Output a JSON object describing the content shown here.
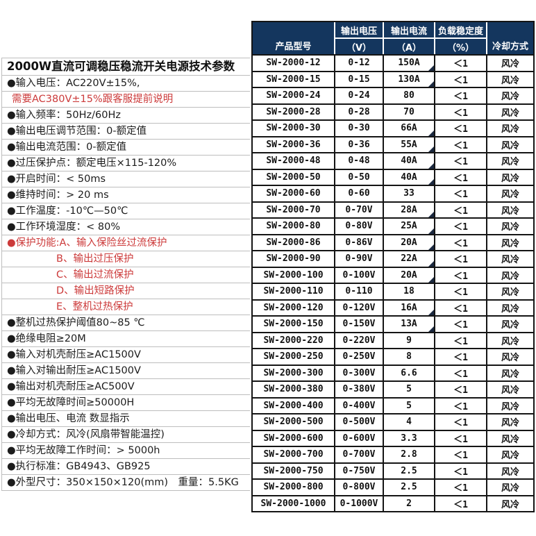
{
  "colors": {
    "header_bg": "#14365E",
    "red_text": "#CC3A3A",
    "grid_gray": "#bdbdbd",
    "table_line": "#141414"
  },
  "specs_panel": {
    "rows": [
      {
        "text": "2000W直流可调稳压稳流开关电源技术参数",
        "variant": "title"
      },
      {
        "text": "●输入电压：AC220V±15%,",
        "variant": "item"
      },
      {
        "text": "需要AC380V±15%跟客服提前说明",
        "variant": "red-indent"
      },
      {
        "text": "●输入频率：50Hz/60Hz",
        "variant": "item"
      },
      {
        "text": "●输出电压调节范围：0-额定值",
        "variant": "item"
      },
      {
        "text": "●输出电流范围：0-额定值",
        "variant": "item"
      },
      {
        "text": "●过压保护点：额定电压×115-120%",
        "variant": "item"
      },
      {
        "text": "●开启时间：< 50ms",
        "variant": "item"
      },
      {
        "text": "●维持时间：> 20 ms",
        "variant": "item"
      },
      {
        "text": "●工作温度：-10℃—50℃",
        "variant": "item"
      },
      {
        "text": "●工作环境湿度：< 80%",
        "variant": "item"
      },
      {
        "text": "●保护功能:A、输入保险丝过流保护",
        "variant": "red"
      },
      {
        "text": "B、输出过压保护",
        "variant": "red-deep"
      },
      {
        "text": "C、输出过流保护",
        "variant": "red-deep"
      },
      {
        "text": "D、输出短路保护",
        "variant": "red-deep"
      },
      {
        "text": "E、整机过热保护",
        "variant": "red-deep"
      },
      {
        "text": "●整机过热保护阈值80~85 ℃",
        "variant": "item"
      },
      {
        "text": "●绝缘电阻≥20M",
        "variant": "item"
      },
      {
        "text": "●输入对机壳耐压≥AC1500V",
        "variant": "item"
      },
      {
        "text": "●输入对输出耐压≥AC1500V",
        "variant": "item"
      },
      {
        "text": "●输出对机壳耐压≥AC500V",
        "variant": "item"
      },
      {
        "text": "●平均无故障时间≥50000H",
        "variant": "item"
      },
      {
        "text": "●输出电压、电流 数显指示",
        "variant": "item"
      },
      {
        "text": "●冷却方式：风冷(风扇带智能温控)",
        "variant": "item"
      },
      {
        "text": "●平均无故障工作时间：> 5000h",
        "variant": "item"
      },
      {
        "text": "●执行标准：GB4943、GB925",
        "variant": "item"
      },
      {
        "text": "●外型尺寸：350×150×120(mm)　重量：5.5KG",
        "variant": "item"
      }
    ]
  },
  "table": {
    "header": {
      "col_model": "产品型号",
      "col_voltage": "输出电压",
      "col_voltage_unit": "（V）",
      "col_current": "输出电流",
      "col_current_unit": "（A）",
      "col_stability": "负载稳定度",
      "col_stability_unit": "（%）",
      "col_cooling": "冷却方式"
    },
    "rows": [
      {
        "model": "SW-2000-12",
        "voltage": "0-12",
        "current": "150A",
        "stability": "＜1",
        "cooling": "风冷",
        "marker": true
      },
      {
        "model": "SW-2000-15",
        "voltage": "0-15",
        "current": "130A",
        "stability": "＜1",
        "cooling": "风冷",
        "marker": true
      },
      {
        "model": "SW-2000-24",
        "voltage": "0-24",
        "current": "80",
        "stability": "＜1",
        "cooling": "风冷",
        "marker": false
      },
      {
        "model": "SW-2000-28",
        "voltage": "0-28",
        "current": "70",
        "stability": "＜1",
        "cooling": "风冷",
        "marker": false
      },
      {
        "model": "SW-2000-30",
        "voltage": "0-30",
        "current": "66A",
        "stability": "＜1",
        "cooling": "风冷",
        "marker": true
      },
      {
        "model": "SW-2000-36",
        "voltage": "0-36",
        "current": "55A",
        "stability": "＜1",
        "cooling": "风冷",
        "marker": true
      },
      {
        "model": "SW-2000-48",
        "voltage": "0-48",
        "current": "40A",
        "stability": "＜1",
        "cooling": "风冷",
        "marker": true
      },
      {
        "model": "SW-2000-50",
        "voltage": "0-50",
        "current": "40A",
        "stability": "＜1",
        "cooling": "风冷",
        "marker": true
      },
      {
        "model": "SW-2000-60",
        "voltage": "0-60",
        "current": "33",
        "stability": "＜1",
        "cooling": "风冷",
        "marker": false
      },
      {
        "model": "SW-2000-70",
        "voltage": "0-70V",
        "current": "28A",
        "stability": "＜1",
        "cooling": "风冷",
        "marker": true
      },
      {
        "model": "SW-2000-80",
        "voltage": "0-80V",
        "current": "25A",
        "stability": "＜1",
        "cooling": "风冷",
        "marker": true
      },
      {
        "model": "SW-2000-86",
        "voltage": "0-86V",
        "current": "20A",
        "stability": "＜1",
        "cooling": "风冷",
        "marker": true
      },
      {
        "model": "SW-2000-90",
        "voltage": "0-90V",
        "current": "22A",
        "stability": "＜1",
        "cooling": "风冷",
        "marker": true
      },
      {
        "model": "SW-2000-100",
        "voltage": "0-100V",
        "current": "20A",
        "stability": "＜1",
        "cooling": "风冷",
        "marker": true
      },
      {
        "model": "SW-2000-110",
        "voltage": "0-110",
        "current": "18",
        "stability": "＜1",
        "cooling": "风冷",
        "marker": false
      },
      {
        "model": "SW-2000-120",
        "voltage": "0-120V",
        "current": "16A",
        "stability": "＜1",
        "cooling": "风冷",
        "marker": true
      },
      {
        "model": "SW-2000-150",
        "voltage": "0-150V",
        "current": "13A",
        "stability": "＜1",
        "cooling": "风冷",
        "marker": true
      },
      {
        "model": "SW-2000-220",
        "voltage": "0-220V",
        "current": "9",
        "stability": "＜1",
        "cooling": "风冷",
        "marker": false
      },
      {
        "model": "SW-2000-250",
        "voltage": "0-250V",
        "current": "8",
        "stability": "＜1",
        "cooling": "风冷",
        "marker": false
      },
      {
        "model": "SW-2000-300",
        "voltage": "0-300V",
        "current": "6.6",
        "stability": "＜1",
        "cooling": "风冷",
        "marker": false
      },
      {
        "model": "SW-2000-380",
        "voltage": "0-380V",
        "current": "5",
        "stability": "＜1",
        "cooling": "风冷",
        "marker": false
      },
      {
        "model": "SW-2000-400",
        "voltage": "0-400V",
        "current": "5",
        "stability": "＜1",
        "cooling": "风冷",
        "marker": false
      },
      {
        "model": "SW-2000-500",
        "voltage": "0-500V",
        "current": "4",
        "stability": "＜1",
        "cooling": "风冷",
        "marker": false
      },
      {
        "model": "SW-2000-600",
        "voltage": "0-600V",
        "current": "3.3",
        "stability": "＜1",
        "cooling": "风冷",
        "marker": false
      },
      {
        "model": "SW-2000-700",
        "voltage": "0-700V",
        "current": "2.8",
        "stability": "＜1",
        "cooling": "风冷",
        "marker": false
      },
      {
        "model": "SW-2000-750",
        "voltage": "0-750V",
        "current": "2.5",
        "stability": "＜1",
        "cooling": "风冷",
        "marker": false
      },
      {
        "model": "SW-2000-800",
        "voltage": "0-800V",
        "current": "2.5",
        "stability": "＜1",
        "cooling": "风冷",
        "marker": false
      },
      {
        "model": "SW-2000-1000",
        "voltage": "0-1000V",
        "current": "2",
        "stability": "＜1",
        "cooling": "风冷",
        "marker": false
      }
    ]
  }
}
